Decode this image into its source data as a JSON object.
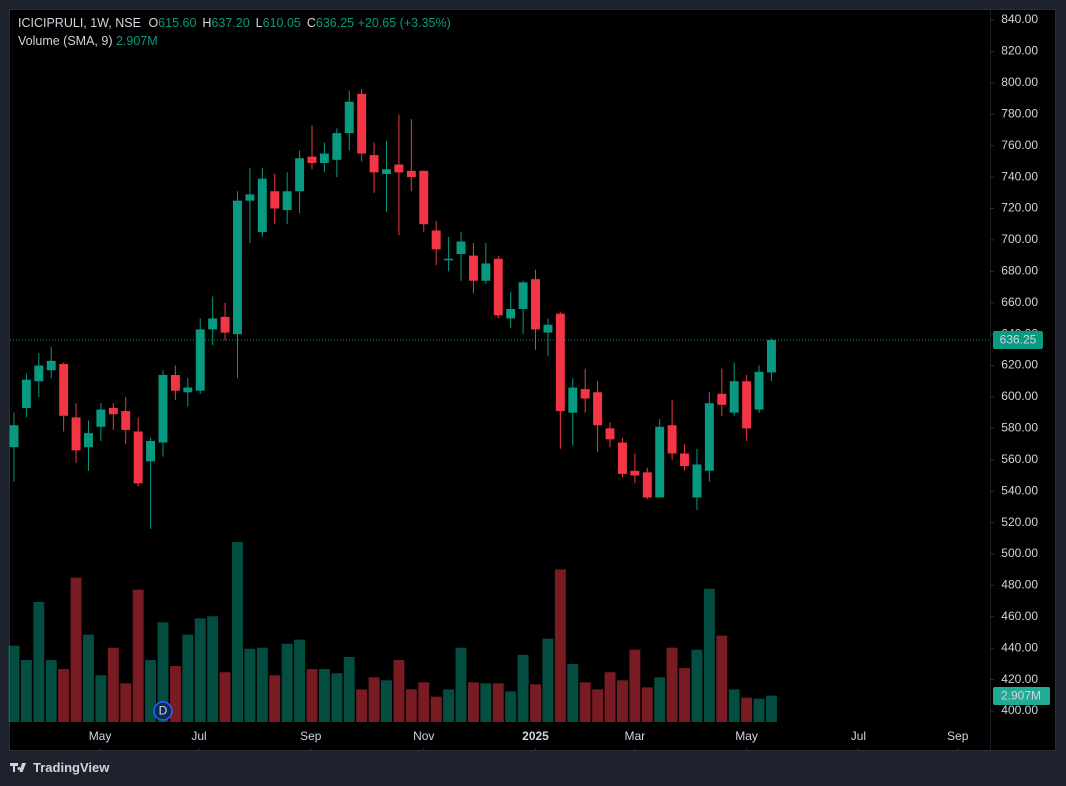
{
  "chart_data": {
    "type": "candlestick",
    "header": {
      "symbol": "ICICIPRULI, 1W, NSE",
      "ohlc": [
        {
          "key": "O",
          "text": "615.60"
        },
        {
          "key": "H",
          "text": "637.20"
        },
        {
          "key": "L",
          "text": "610.05"
        },
        {
          "key": "C",
          "text": "636.25"
        }
      ],
      "change": "+20.65 (+3.35%)",
      "volume_title": "Volume (SMA, 9)",
      "volume_sma": "2.907M"
    },
    "x": [
      0,
      1,
      2,
      3,
      4,
      5,
      6,
      7,
      8,
      9,
      10,
      11,
      12,
      13,
      14,
      15,
      16,
      17,
      18,
      19,
      20,
      21,
      22,
      23,
      24,
      25,
      26,
      27,
      28,
      29,
      30,
      31,
      32,
      33,
      34,
      35,
      36,
      37,
      38,
      39,
      40,
      41,
      42,
      43,
      44,
      45,
      46,
      47,
      48,
      49,
      50,
      51,
      52,
      53,
      54,
      55,
      56,
      57,
      58,
      59,
      60,
      61
    ],
    "open": [
      568,
      593,
      610,
      617,
      621,
      587,
      568,
      581,
      593,
      591,
      578,
      559,
      571,
      614,
      603,
      604,
      643,
      651,
      640,
      725,
      705,
      731,
      719,
      731,
      753,
      749,
      751,
      768,
      793,
      754,
      742,
      748,
      744,
      744,
      706,
      687,
      691,
      690,
      674,
      688,
      650,
      656,
      675,
      641,
      653,
      590,
      605,
      603,
      580,
      571,
      553,
      552,
      536,
      582,
      564,
      536,
      553,
      602,
      590,
      610,
      592,
      615.6
    ],
    "high": [
      590,
      615,
      628,
      632,
      622,
      596,
      585,
      596,
      596,
      600,
      587,
      574,
      617,
      620,
      612,
      650,
      664,
      660,
      731,
      746,
      746,
      742,
      743,
      757,
      773,
      762,
      771,
      795,
      796,
      762,
      763,
      780,
      777,
      744,
      712,
      702,
      705,
      698,
      698,
      690,
      667,
      674,
      681,
      650,
      654,
      612,
      618,
      610,
      584,
      574,
      564,
      555,
      586,
      598,
      570,
      567,
      603,
      618,
      622,
      614,
      620,
      637.2
    ],
    "low": [
      546,
      587,
      600,
      612,
      578,
      558,
      553,
      572,
      579,
      570,
      543,
      516,
      562,
      598,
      594,
      602,
      633,
      636,
      612,
      698,
      702,
      710,
      710,
      717,
      745,
      743,
      740,
      757,
      750,
      730,
      718,
      703,
      731,
      705,
      684,
      680,
      674,
      666,
      672,
      650,
      644,
      640,
      630,
      626,
      567,
      569,
      590,
      565,
      568,
      549,
      545,
      535,
      536,
      560,
      553,
      528,
      546,
      588,
      588,
      572,
      590,
      610.05
    ],
    "close": [
      582,
      611,
      620,
      623,
      588,
      566,
      577,
      592,
      589,
      579,
      545,
      572,
      614,
      604,
      606,
      643,
      650,
      641,
      725,
      729,
      739,
      720,
      731,
      752,
      749,
      755,
      768,
      788,
      755,
      743,
      745,
      743,
      740,
      710,
      694,
      688,
      699,
      674,
      685,
      652,
      656,
      673,
      643,
      646,
      591,
      606,
      599,
      582,
      573,
      551,
      550,
      536,
      581,
      564,
      556,
      557,
      596,
      595,
      610,
      580,
      616,
      636.25
    ],
    "volume": [
      3.79,
      3.08,
      5.96,
      3.08,
      2.63,
      7.17,
      4.34,
      2.32,
      3.69,
      1.92,
      6.57,
      3.08,
      4.95,
      2.78,
      4.34,
      5.15,
      5.25,
      2.47,
      8.94,
      3.64,
      3.69,
      2.32,
      3.89,
      4.09,
      2.63,
      2.63,
      2.42,
      3.23,
      1.62,
      2.22,
      2.07,
      3.08,
      1.62,
      1.97,
      1.26,
      1.62,
      3.69,
      1.97,
      1.92,
      1.92,
      1.52,
      3.33,
      1.87,
      4.14,
      7.58,
      2.88,
      1.97,
      1.62,
      2.47,
      2.07,
      3.59,
      1.72,
      2.22,
      3.69,
      2.68,
      3.59,
      6.62,
      4.29,
      1.62,
      1.21,
      1.16,
      1.31
    ],
    "up_color": "#089981",
    "down_color": "#f23645",
    "events": [
      {
        "x": 12,
        "label": "D"
      }
    ],
    "last_price": {
      "value": 636.25,
      "label": "636.25"
    },
    "xlim": [
      -0.32,
      78.6
    ],
    "xticks": [
      {
        "value": 6.93,
        "label": "May"
      },
      {
        "value": 14.9,
        "label": "Jul"
      },
      {
        "value": 23.9,
        "label": "Sep"
      },
      {
        "value": 33.0,
        "label": "Nov"
      },
      {
        "value": 42.0,
        "label": "2025"
      },
      {
        "value": 50.0,
        "label": "Mar"
      },
      {
        "value": 59.0,
        "label": "May"
      },
      {
        "value": 68.0,
        "label": "Jul"
      },
      {
        "value": 76.0,
        "label": "Sep"
      }
    ],
    "ylim": [
      375.2,
      846.4
    ],
    "yticks": [
      {
        "value": 400,
        "label": "400.00"
      },
      {
        "value": 420,
        "label": "420.00"
      },
      {
        "value": 440,
        "label": "440.00"
      },
      {
        "value": 460,
        "label": "460.00"
      },
      {
        "value": 480,
        "label": "480.00"
      },
      {
        "value": 500,
        "label": "500.00"
      },
      {
        "value": 520,
        "label": "520.00"
      },
      {
        "value": 540,
        "label": "540.00"
      },
      {
        "value": 560,
        "label": "560.00"
      },
      {
        "value": 580,
        "label": "580.00"
      },
      {
        "value": 600,
        "label": "600.00"
      },
      {
        "value": 620,
        "label": "620.00"
      },
      {
        "value": 640,
        "label": "640.00"
      },
      {
        "value": 660,
        "label": "660.00"
      },
      {
        "value": 680,
        "label": "680.00"
      },
      {
        "value": 700,
        "label": "700.00"
      },
      {
        "value": 720,
        "label": "720.00"
      },
      {
        "value": 740,
        "label": "740.00"
      },
      {
        "value": 760,
        "label": "760.00"
      },
      {
        "value": 780,
        "label": "780.00"
      },
      {
        "value": 800,
        "label": "800.00"
      },
      {
        "value": 820,
        "label": "820.00"
      },
      {
        "value": 840,
        "label": "840.00"
      }
    ],
    "grid": false,
    "brand": "TradingView"
  }
}
